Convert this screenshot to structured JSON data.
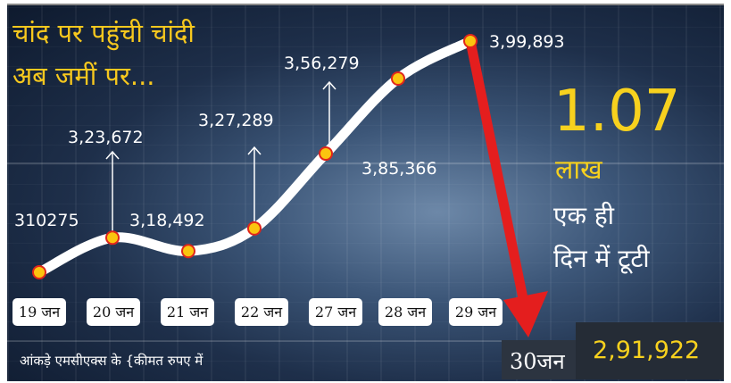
{
  "title_line1": "चांद पर पहुंची चांदी",
  "title_line2": "अब जमीं  पर...",
  "chart_data": {
    "type": "line",
    "categories": [
      "19 जन",
      "20 जन",
      "21 जन",
      "22 जन",
      "27 जन",
      "28 जन",
      "29 जन",
      "30जन"
    ],
    "values": [
      310275,
      323672,
      318492,
      327289,
      356279,
      385366,
      399893,
      291922
    ],
    "labels": [
      "310275",
      "3,23,672",
      "3,18,492",
      "3,27,289",
      "3,56,279",
      "3,85,366",
      "3,99,893",
      "2,91,922"
    ],
    "colors": {
      "line": "#ffffff",
      "point_fill": "#fbc50f",
      "point_stroke": "#e0261b",
      "drop_arrow": "#e41e1e"
    }
  },
  "drop": {
    "amount": "1.07",
    "unit": "लाख",
    "line1": "एक ही",
    "line2": "दिन में टूटी"
  },
  "source": "आंकड़े एमसीएक्स के {कीमत रुपए में"
}
